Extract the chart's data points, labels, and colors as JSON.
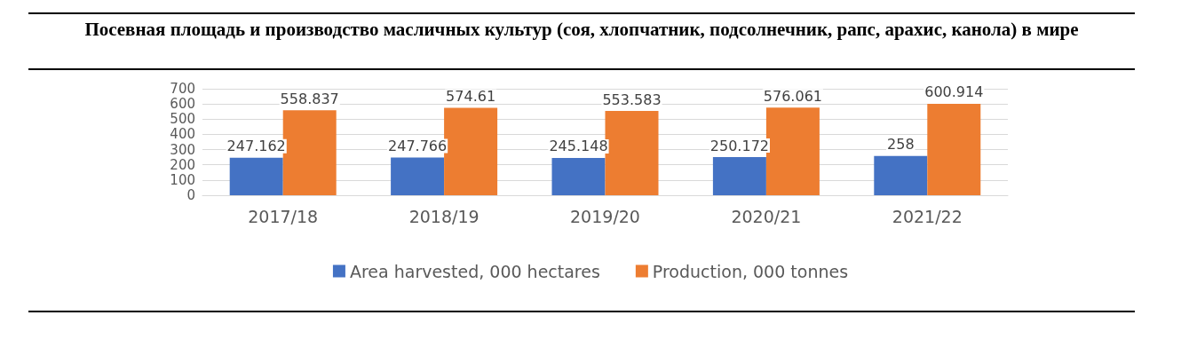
{
  "chart_data": {
    "type": "bar",
    "title": "Посевная площадь и производство масличных культур (соя, хлопчатник, подсолнечник, рапс, арахис, канола) в мире",
    "categories": [
      "2017/18",
      "2018/19",
      "2019/20",
      "2020/21",
      "2021/22"
    ],
    "series": [
      {
        "name": "Area harvested, 000 hectares",
        "color": "#4472c4",
        "values": [
          247.162,
          247.766,
          245.148,
          250.172,
          258
        ]
      },
      {
        "name": "Production, 000 tonnes",
        "color": "#ed7d31",
        "values": [
          558.837,
          574.61,
          553.583,
          576.061,
          600.914
        ]
      }
    ],
    "ylim": [
      0,
      700
    ],
    "yticks": [
      0,
      100,
      200,
      300,
      400,
      500,
      600,
      700
    ],
    "grid": "y",
    "legend": "bottom",
    "data_labels": true
  }
}
